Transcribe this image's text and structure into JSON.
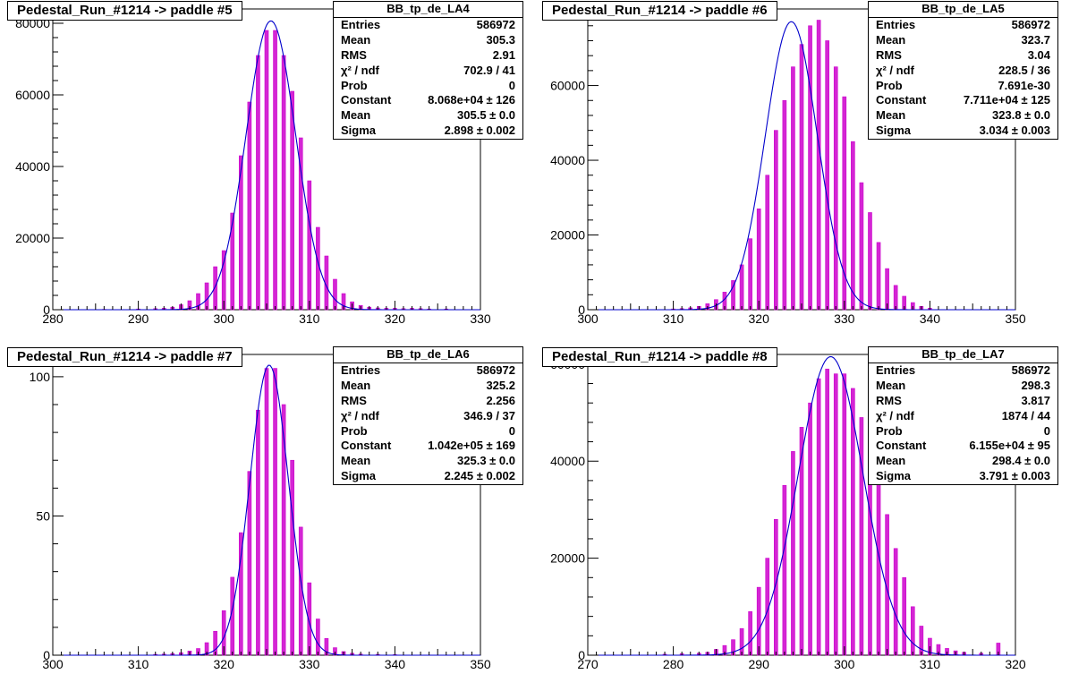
{
  "colors": {
    "histogram": "#cc00cc",
    "fit": "#0000cc",
    "axis": "#000000"
  },
  "chart_data": [
    {
      "type": "bar",
      "title": "Pedestal_Run_#1214 -> paddle #5",
      "xlim": [
        280,
        330
      ],
      "ylim": [
        0,
        84000
      ],
      "xticks": [
        280,
        290,
        300,
        310,
        320,
        330
      ],
      "yticks": [
        0,
        20000,
        40000,
        60000,
        80000
      ],
      "fit": {
        "function": "gaus",
        "constant": 80680,
        "mean": 305.5,
        "sigma": 2.898
      },
      "stats": {
        "name": "BB_tp_de_LA4",
        "rows": [
          {
            "label": "Entries",
            "value": "586972"
          },
          {
            "label": "Mean",
            "value": "305.3"
          },
          {
            "label": "RMS",
            "value": "2.91"
          },
          {
            "label": "χ² / ndf",
            "value": "702.9 / 41"
          },
          {
            "label": "Prob",
            "value": "0"
          },
          {
            "label": "Constant",
            "value": "8.068e+04 ± 126"
          },
          {
            "label": "Mean",
            "value": "305.5 ± 0.0"
          },
          {
            "label": "Sigma",
            "value": "2.898 ± 0.002"
          }
        ]
      },
      "series": [
        {
          "x": [
            286,
            290,
            292,
            293,
            294,
            295,
            296,
            297,
            298,
            299,
            300,
            301,
            302,
            303,
            304,
            305,
            306,
            307,
            308,
            309,
            310,
            311,
            312,
            313,
            314,
            315,
            316,
            317,
            318,
            319,
            320,
            321,
            322,
            323,
            324,
            326
          ],
          "values": [
            100,
            200,
            300,
            400,
            700,
            1400,
            2500,
            4500,
            7500,
            12000,
            16500,
            27000,
            43000,
            58000,
            71000,
            78000,
            78000,
            71000,
            61000,
            48000,
            36000,
            23000,
            15000,
            8500,
            4500,
            2200,
            1200,
            700,
            500,
            400,
            400,
            300,
            400,
            300,
            200,
            200
          ]
        }
      ]
    },
    {
      "type": "bar",
      "title": "Pedestal_Run_#1214 -> paddle #6",
      "xlim": [
        300,
        350
      ],
      "ylim": [
        0,
        80500
      ],
      "xticks": [
        300,
        310,
        320,
        330,
        340,
        350
      ],
      "yticks": [
        0,
        20000,
        40000,
        60000,
        80000
      ],
      "fit": {
        "function": "gaus",
        "constant": 77110,
        "mean": 323.8,
        "sigma": 3.034
      },
      "stats": {
        "name": "BB_tp_de_LA5",
        "rows": [
          {
            "label": "Entries",
            "value": "586972"
          },
          {
            "label": "Mean",
            "value": "323.7"
          },
          {
            "label": "RMS",
            "value": "3.04"
          },
          {
            "label": "χ² / ndf",
            "value": "228.5 / 36"
          },
          {
            "label": "Prob",
            "value": "7.691e-30"
          },
          {
            "label": "Constant",
            "value": "7.711e+04 ± 125"
          },
          {
            "label": "Mean",
            "value": "323.8 ± 0.0"
          },
          {
            "label": "Sigma",
            "value": "3.034 ± 0.003"
          }
        ]
      },
      "series": [
        {
          "x": [
            310,
            311,
            312,
            313,
            314,
            315,
            316,
            317,
            318,
            319,
            320,
            321,
            322,
            323,
            324,
            325,
            326,
            327,
            328,
            329,
            330,
            331,
            332,
            333,
            334,
            335,
            336,
            337,
            338,
            339,
            340
          ],
          "values": [
            200,
            300,
            500,
            900,
            1600,
            2700,
            4700,
            7800,
            12000,
            19000,
            27000,
            36000,
            48000,
            56000,
            65000,
            71000,
            76000,
            77500,
            72000,
            65000,
            57000,
            45000,
            34000,
            26000,
            18000,
            11000,
            6500,
            3600,
            1900,
            900,
            400
          ]
        }
      ]
    },
    {
      "type": "bar",
      "title": "Pedestal_Run_#1214 -> paddle #7",
      "xlim": [
        300,
        350
      ],
      "ylim": [
        0,
        108000
      ],
      "xticks": [
        300,
        310,
        320,
        330,
        340,
        350
      ],
      "yticks": [
        0,
        50000,
        100000
      ],
      "ytick_labels": [
        "0",
        "50",
        "100"
      ],
      "fit": {
        "function": "gaus",
        "constant": 104200,
        "mean": 325.3,
        "sigma": 2.245
      },
      "stats": {
        "name": "BB_tp_de_LA6",
        "rows": [
          {
            "label": "Entries",
            "value": "586972"
          },
          {
            "label": "Mean",
            "value": "325.2"
          },
          {
            "label": "RMS",
            "value": "2.256"
          },
          {
            "label": "χ² / ndf",
            "value": "346.9 / 37"
          },
          {
            "label": "Prob",
            "value": "0"
          },
          {
            "label": "Constant",
            "value": "1.042e+05 ± 169"
          },
          {
            "label": "Mean",
            "value": "325.3 ± 0.0"
          },
          {
            "label": "Sigma",
            "value": "2.245 ± 0.002"
          }
        ]
      },
      "series": [
        {
          "x": [
            312,
            313,
            314,
            315,
            316,
            317,
            318,
            319,
            320,
            321,
            322,
            323,
            324,
            325,
            326,
            327,
            328,
            329,
            330,
            331,
            332,
            333,
            334,
            335,
            336,
            338,
            340
          ],
          "values": [
            300,
            400,
            600,
            900,
            1500,
            2400,
            4500,
            8600,
            16000,
            28000,
            44000,
            66000,
            88000,
            103000,
            103000,
            90000,
            70000,
            46000,
            26000,
            13000,
            6000,
            2700,
            1300,
            700,
            400,
            300,
            200
          ]
        }
      ]
    },
    {
      "type": "bar",
      "title": "Pedestal_Run_#1214 -> paddle #8",
      "xlim": [
        270,
        320
      ],
      "ylim": [
        0,
        62000
      ],
      "xticks": [
        270,
        280,
        290,
        300,
        310,
        320
      ],
      "yticks": [
        0,
        20000,
        40000,
        60000
      ],
      "fit": {
        "function": "gaus",
        "constant": 61550,
        "mean": 298.4,
        "sigma": 3.791
      },
      "stats": {
        "name": "BB_tp_de_LA7",
        "rows": [
          {
            "label": "Entries",
            "value": "586972"
          },
          {
            "label": "Mean",
            "value": "298.3"
          },
          {
            "label": "RMS",
            "value": "3.817"
          },
          {
            "label": "χ² / ndf",
            "value": "1874 / 44"
          },
          {
            "label": "Prob",
            "value": "0"
          },
          {
            "label": "Constant",
            "value": "6.155e+04 ± 95"
          },
          {
            "label": "Mean",
            "value": "298.4 ± 0.0"
          },
          {
            "label": "Sigma",
            "value": "3.791 ± 0.003"
          }
        ]
      },
      "series": [
        {
          "x": [
            279,
            281,
            283,
            284,
            285,
            286,
            287,
            288,
            289,
            290,
            291,
            292,
            293,
            294,
            295,
            296,
            297,
            298,
            299,
            300,
            301,
            302,
            303,
            304,
            305,
            306,
            307,
            308,
            309,
            310,
            311,
            312,
            313,
            314,
            316,
            318
          ],
          "values": [
            200,
            300,
            400,
            600,
            1200,
            2000,
            3200,
            5500,
            9000,
            14000,
            20000,
            28000,
            35000,
            42000,
            47000,
            52000,
            57000,
            59000,
            58000,
            58000,
            55000,
            49000,
            43000,
            36000,
            29000,
            22000,
            16000,
            10000,
            6000,
            3500,
            2200,
            1400,
            900,
            600,
            400,
            2500
          ]
        }
      ]
    }
  ]
}
